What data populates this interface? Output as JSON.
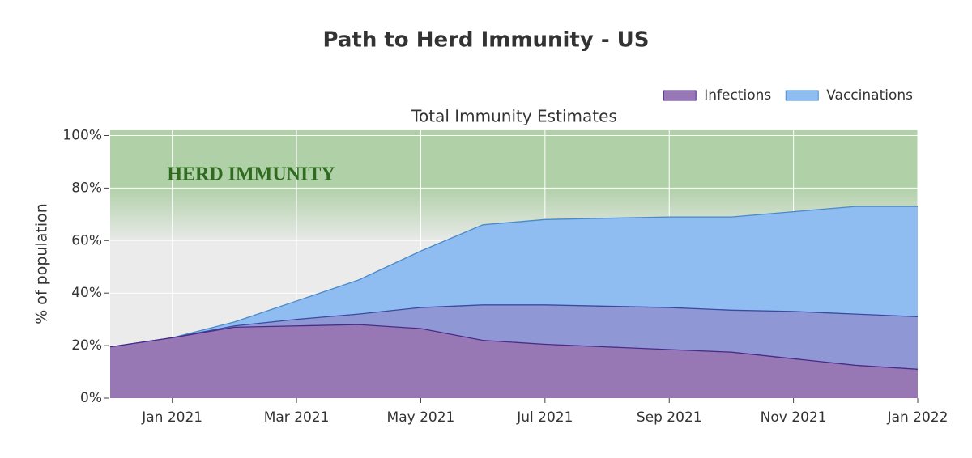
{
  "chart_data": {
    "type": "area",
    "title": "Path to Herd Immunity - US",
    "subtitle": "Total Immunity Estimates",
    "y_label": "% of population",
    "annotation": "HERD IMMUNITY",
    "x": [
      "2020-12",
      "2021-01",
      "2021-02",
      "2021-03",
      "2021-04",
      "2021-05",
      "2021-06",
      "2021-07",
      "2021-08",
      "2021-09",
      "2021-10",
      "2021-11",
      "2021-12",
      "2022-01"
    ],
    "xlim": [
      "2020-12",
      "2022-01"
    ],
    "xticks": [
      {
        "value": "2021-01",
        "label": "Jan 2021"
      },
      {
        "value": "2021-03",
        "label": "Mar 2021"
      },
      {
        "value": "2021-05",
        "label": "May 2021"
      },
      {
        "value": "2021-07",
        "label": "Jul 2021"
      },
      {
        "value": "2021-09",
        "label": "Sep 2021"
      },
      {
        "value": "2021-11",
        "label": "Nov 2021"
      },
      {
        "value": "2022-01",
        "label": "Jan 2022"
      }
    ],
    "ylim": [
      0,
      102
    ],
    "yticks": [
      {
        "value": 0,
        "label": "0%"
      },
      {
        "value": 20,
        "label": "20%"
      },
      {
        "value": 40,
        "label": "40%"
      },
      {
        "value": 60,
        "label": "60%"
      },
      {
        "value": 80,
        "label": "80%"
      },
      {
        "value": 100,
        "label": "100%"
      }
    ],
    "grid": true,
    "legend": "top-right",
    "series": [
      {
        "name": "Vaccinations",
        "color": "#8fbdf2",
        "line_color": "#4a8ac8",
        "values": [
          19.5,
          23,
          29,
          37,
          45,
          56,
          66,
          68,
          68.5,
          69,
          69,
          71,
          73,
          73
        ]
      },
      {
        "color": "#8f98d4",
        "line_color": "#3b4aa0",
        "values": [
          19.5,
          23,
          27.5,
          30,
          32,
          34.5,
          35.5,
          35.5,
          35,
          34.5,
          33.5,
          33,
          32,
          31
        ]
      },
      {
        "name": "Infections",
        "color": "#9878b4",
        "line_color": "#4b2b8a",
        "values": [
          19.5,
          23,
          27,
          27.5,
          28,
          26.5,
          22,
          20.5,
          19.5,
          18.5,
          17.5,
          15,
          12.5,
          11
        ]
      }
    ]
  }
}
